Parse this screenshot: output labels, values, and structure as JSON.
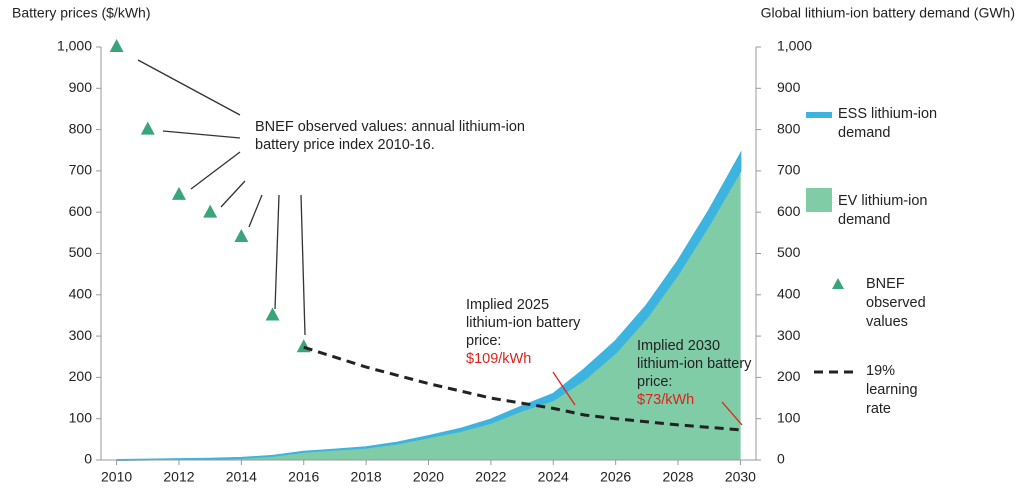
{
  "chart_data": {
    "type": "combo",
    "y_label": "Battery prices ($/kWh)",
    "y2_label": "Global lithium-ion battery demand (GWh)",
    "xlim": [
      2009.5,
      2030.5
    ],
    "xticks": [
      2010,
      2012,
      2014,
      2016,
      2018,
      2020,
      2022,
      2024,
      2026,
      2028,
      2030
    ],
    "ylim": [
      0,
      1000
    ],
    "yticks": [
      0,
      100,
      200,
      300,
      400,
      500,
      600,
      700,
      800,
      900,
      {
        "value": 1000,
        "label": "1,000"
      }
    ],
    "y2lim": [
      0,
      1000
    ],
    "y2ticks": [
      0,
      100,
      200,
      300,
      400,
      500,
      600,
      700,
      800,
      900,
      {
        "value": 1000,
        "label": "1,000"
      }
    ],
    "grid": false,
    "series": [
      {
        "name": "EV lithium-ion demand",
        "type": "area",
        "axis": "y2",
        "color": "#7fcca6",
        "x": [
          2010,
          2011,
          2012,
          2013,
          2014,
          2015,
          2016,
          2017,
          2018,
          2019,
          2020,
          2021,
          2022,
          2023,
          2024,
          2025,
          2026,
          2027,
          2028,
          2029,
          2030
        ],
        "values": [
          0,
          1,
          2,
          3,
          5,
          10,
          20,
          25,
          30,
          40,
          55,
          70,
          90,
          120,
          145,
          195,
          260,
          345,
          450,
          570,
          700
        ]
      },
      {
        "name": "ESS lithium-ion demand",
        "type": "area",
        "axis": "y2",
        "stacked": true,
        "color": "#3db4e0",
        "x": [
          2010,
          2011,
          2012,
          2013,
          2014,
          2015,
          2016,
          2017,
          2018,
          2019,
          2020,
          2021,
          2022,
          2023,
          2024,
          2025,
          2026,
          2027,
          2028,
          2029,
          2030
        ],
        "values": [
          0,
          0,
          0,
          0,
          0,
          0,
          0,
          0,
          1,
          2,
          3,
          5,
          8,
          10,
          15,
          25,
          28,
          30,
          32,
          35,
          40
        ]
      },
      {
        "name": "BNEF observed values",
        "type": "scatter",
        "color": "#3aa57a",
        "x": [
          2010,
          2011,
          2012,
          2013,
          2014,
          2015,
          2016
        ],
        "values": [
          1000,
          800,
          642,
          599,
          540,
          350,
          273
        ]
      },
      {
        "name": "19% learning rate",
        "type": "line",
        "dashed": true,
        "color": "#222222",
        "x": [
          2016,
          2018,
          2020,
          2022,
          2024,
          2025,
          2026,
          2028,
          2030
        ],
        "values": [
          273,
          225,
          185,
          150,
          125,
          109,
          100,
          85,
          73
        ]
      }
    ],
    "annotations": [
      {
        "text": "BNEF observed values: annual lithium-ion battery price index 2010-16."
      },
      {
        "text": "Implied 2025 lithium-ion battery price:",
        "highlight": "$109/kWh"
      },
      {
        "text": "Implied 2030 lithium-ion battery price:",
        "highlight": "$73/kWh"
      }
    ]
  }
}
